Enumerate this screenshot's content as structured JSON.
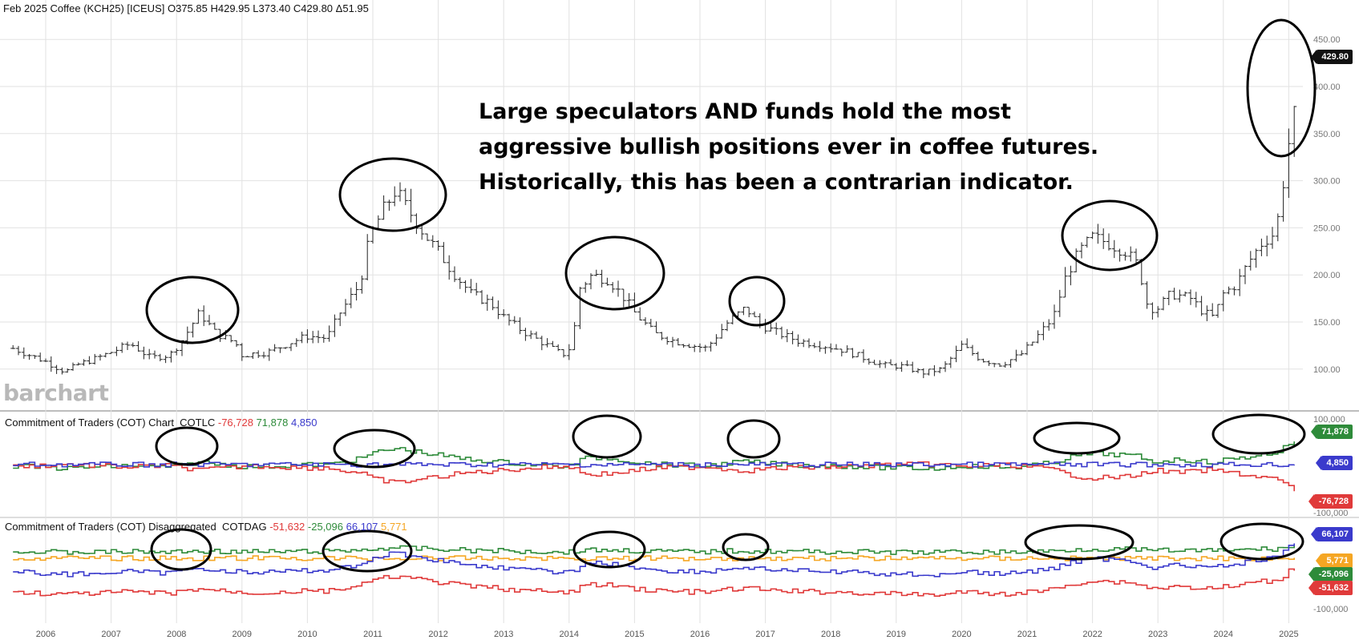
{
  "header": {
    "symbol": "Feb 2025 Coffee (KCH25) [ICEUS]",
    "open": "O375.85",
    "high": "H429.95",
    "low": "L373.40",
    "close": "C429.80",
    "change": "Δ51.95"
  },
  "annotation": {
    "line1": "Large speculators  AND funds hold the most",
    "line2": "aggressive bullish positions ever in coffee futures.",
    "line3": "Historically, this has been a contrarian indicator."
  },
  "watermark": "barchart",
  "panel1": {
    "label": "Commitment of Traders (COT) Chart",
    "code": "COTLC",
    "v1": "-76,728",
    "v2": "71,878",
    "v3": "4,850",
    "tag_green": "71,878",
    "tag_blue": "4,850",
    "tag_red": "-76,728",
    "axis_top": "100,000",
    "axis_bottom": "-100,000"
  },
  "panel2": {
    "label": "Commitment of Traders (COT) Disaggregated",
    "code": "COTDAG",
    "v1": "-51,632",
    "v2": "-25,096",
    "v3": "66,107",
    "v4": "5,771",
    "tag_blue": "66,107",
    "tag_orange": "5,771",
    "tag_green": "-25,096",
    "tag_red": "-51,632",
    "axis_bottom": "-100,000"
  },
  "last_price_tag": "429.80",
  "colors": {
    "red": "#e03a3a",
    "green": "#2e8b3a",
    "blue": "#3a3acc",
    "orange": "#f5a623",
    "grid": "#e2e2e2",
    "tag_dark": "#111111"
  },
  "chart_data": {
    "type": "bar",
    "title": "Feb 2025 Coffee (KCH25) [ICEUS]",
    "x_labels": [
      "2006",
      "2007",
      "2008",
      "2009",
      "2010",
      "2011",
      "2012",
      "2013",
      "2014",
      "2015",
      "2016",
      "2017",
      "2018",
      "2019",
      "2020",
      "2021",
      "2022",
      "2023",
      "2024",
      "2025"
    ],
    "y_ticks": [
      "100.00",
      "150.00",
      "200.00",
      "250.00",
      "300.00",
      "350.00",
      "400.00",
      "450.00"
    ],
    "ylim": [
      75,
      460
    ],
    "price_path": [
      [
        2005.5,
        122
      ],
      [
        2006.0,
        108
      ],
      [
        2006.3,
        97
      ],
      [
        2006.5,
        105
      ],
      [
        2006.8,
        112
      ],
      [
        2007.0,
        118
      ],
      [
        2007.3,
        127
      ],
      [
        2007.6,
        112
      ],
      [
        2007.9,
        115
      ],
      [
        2008.1,
        132
      ],
      [
        2008.35,
        160
      ],
      [
        2008.6,
        138
      ],
      [
        2008.9,
        128
      ],
      [
        2009.0,
        115
      ],
      [
        2009.4,
        118
      ],
      [
        2009.8,
        130
      ],
      [
        2010.0,
        135
      ],
      [
        2010.3,
        133
      ],
      [
        2010.5,
        160
      ],
      [
        2010.8,
        190
      ],
      [
        2010.95,
        240
      ],
      [
        2011.15,
        268
      ],
      [
        2011.35,
        290
      ],
      [
        2011.55,
        268
      ],
      [
        2011.8,
        242
      ],
      [
        2012.0,
        225
      ],
      [
        2012.2,
        205
      ],
      [
        2012.5,
        180
      ],
      [
        2012.8,
        170
      ],
      [
        2013.0,
        155
      ],
      [
        2013.3,
        140
      ],
      [
        2013.6,
        128
      ],
      [
        2013.9,
        115
      ],
      [
        2014.05,
        125
      ],
      [
        2014.15,
        185
      ],
      [
        2014.35,
        200
      ],
      [
        2014.6,
        195
      ],
      [
        2014.85,
        175
      ],
      [
        2015.0,
        160
      ],
      [
        2015.3,
        138
      ],
      [
        2015.6,
        130
      ],
      [
        2015.9,
        125
      ],
      [
        2016.1,
        122
      ],
      [
        2016.4,
        148
      ],
      [
        2016.7,
        165
      ],
      [
        2016.9,
        148
      ],
      [
        2017.2,
        138
      ],
      [
        2017.5,
        130
      ],
      [
        2017.9,
        125
      ],
      [
        2018.2,
        120
      ],
      [
        2018.5,
        112
      ],
      [
        2018.8,
        104
      ],
      [
        2019.1,
        103
      ],
      [
        2019.4,
        96
      ],
      [
        2019.7,
        100
      ],
      [
        2020.0,
        125
      ],
      [
        2020.3,
        110
      ],
      [
        2020.6,
        105
      ],
      [
        2020.9,
        115
      ],
      [
        2021.1,
        130
      ],
      [
        2021.4,
        155
      ],
      [
        2021.6,
        200
      ],
      [
        2021.8,
        225
      ],
      [
        2022.0,
        240
      ],
      [
        2022.2,
        235
      ],
      [
        2022.5,
        225
      ],
      [
        2022.7,
        210
      ],
      [
        2022.85,
        165
      ],
      [
        2023.0,
        165
      ],
      [
        2023.2,
        180
      ],
      [
        2023.5,
        175
      ],
      [
        2023.7,
        160
      ],
      [
        2023.85,
        155
      ],
      [
        2024.0,
        180
      ],
      [
        2024.2,
        190
      ],
      [
        2024.4,
        215
      ],
      [
        2024.6,
        235
      ],
      [
        2024.8,
        245
      ],
      [
        2024.9,
        290
      ],
      [
        2025.0,
        340
      ],
      [
        2025.1,
        375
      ],
      [
        2025.15,
        429.8
      ]
    ]
  }
}
